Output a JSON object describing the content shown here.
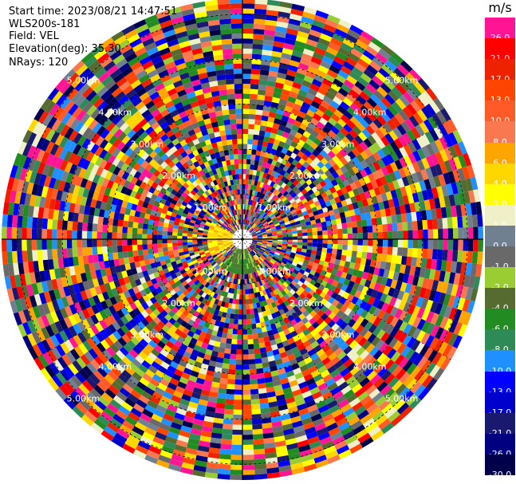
{
  "header": {
    "start_time": "Start time: 2023/08/21 14:47:51",
    "instrument": "WLS200s-181",
    "field": "Field: VEL",
    "elevation": "Elevation(deg): 35.30",
    "nrays": "NRays: 120"
  },
  "radar": {
    "ring_labels": [
      "1.00km",
      "2.00km",
      "3.00km",
      "4.00km",
      "5.00km"
    ],
    "n_rays": 120
  },
  "colorbar": {
    "unit": "m/s",
    "levels": [
      {
        "label": "26.0",
        "color": "#ff1493"
      },
      {
        "label": "21.0",
        "color": "#ff0000"
      },
      {
        "label": "17.0",
        "color": "#ee2200"
      },
      {
        "label": "13.0",
        "color": "#ff4500"
      },
      {
        "label": "10.0",
        "color": "#ff5a28"
      },
      {
        "label": "8.0",
        "color": "#fa7850"
      },
      {
        "label": "6.0",
        "color": "#ffa500"
      },
      {
        "label": "4.0",
        "color": "#ffd700"
      },
      {
        "label": "2.0",
        "color": "#ffff00"
      },
      {
        "label": "1.0",
        "color": "#f0f0c8"
      },
      {
        "label": "0.0",
        "color": "#708090"
      },
      {
        "label": "-1.0",
        "color": "#696969"
      },
      {
        "label": "-2.0",
        "color": "#9acd32"
      },
      {
        "label": "-4.0",
        "color": "#556b2f"
      },
      {
        "label": "-6.0",
        "color": "#228b22"
      },
      {
        "label": "-8.0",
        "color": "#2e8b57"
      },
      {
        "label": "-10.0",
        "color": "#1e90ff"
      },
      {
        "label": "-13.0",
        "color": "#0000ff"
      },
      {
        "label": "-17.0",
        "color": "#0000cd"
      },
      {
        "label": "-21.0",
        "color": "#191970"
      },
      {
        "label": "-26.0",
        "color": "#000080"
      },
      {
        "label": "-30.0",
        "color": "#00004b"
      }
    ]
  }
}
